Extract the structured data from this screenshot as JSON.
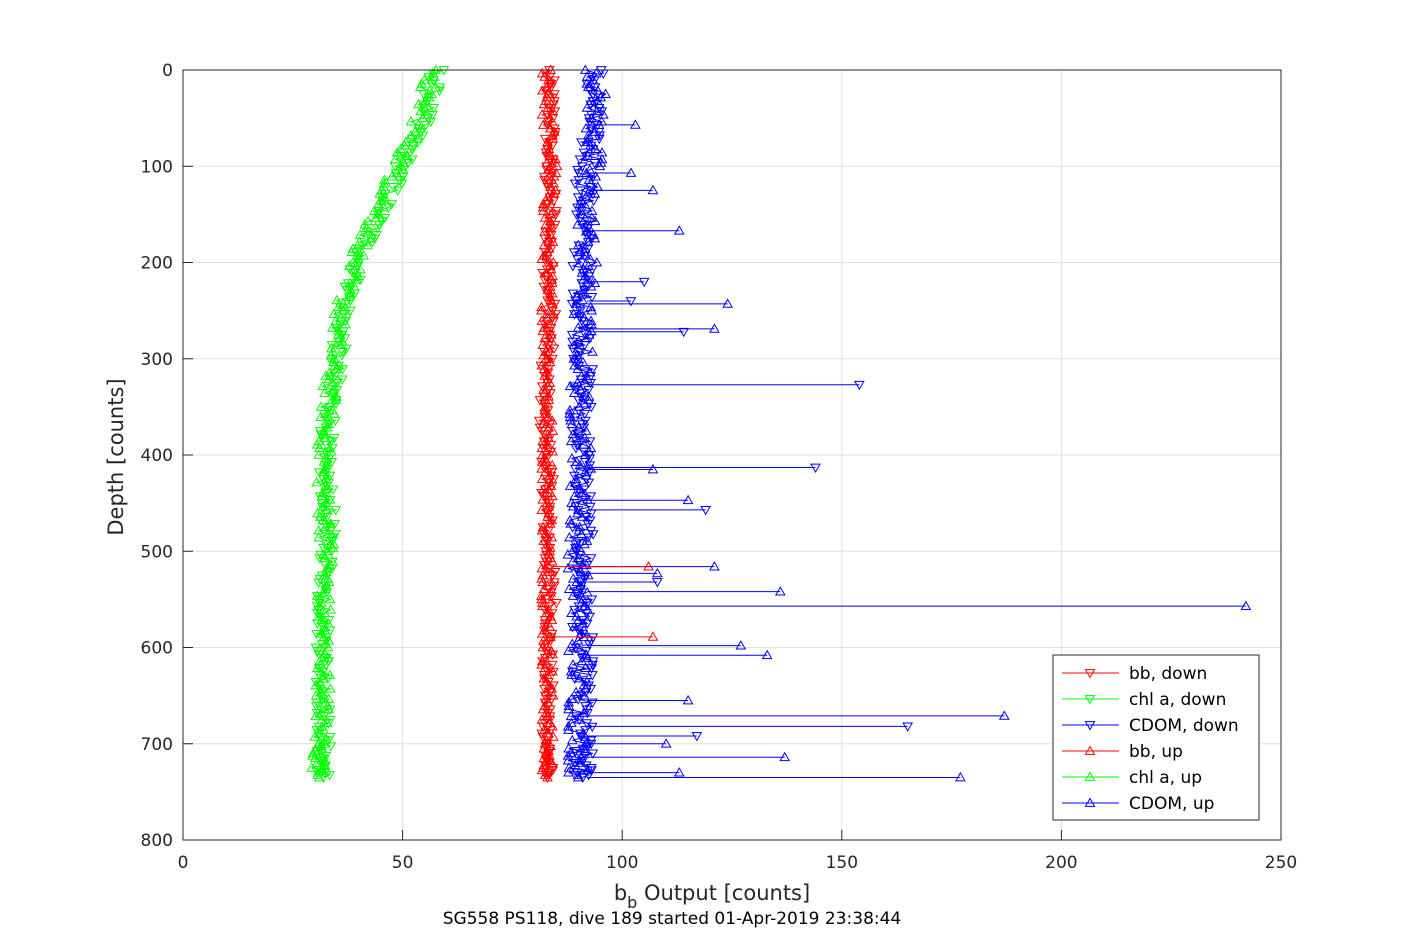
{
  "chart_data": {
    "type": "line",
    "title": "",
    "xlabel": "b",
    "xlabel_sub": "b",
    "xlabel_rest": " Output [counts]",
    "ylabel": "Depth [counts]",
    "caption": "SG558 PS118, dive 189 started 01-Apr-2019 23:38:44",
    "xlim": [
      0,
      250
    ],
    "ylim": [
      0,
      800
    ],
    "y_reversed": true,
    "grid": true,
    "legend_position": "bottom-right",
    "x_ticks": [
      0,
      50,
      100,
      150,
      200,
      250
    ],
    "y_ticks": [
      0,
      100,
      200,
      300,
      400,
      500,
      600,
      700,
      800
    ],
    "x_tick_labels": [
      "0",
      "50",
      "100",
      "150",
      "200",
      "250"
    ],
    "y_tick_labels": [
      "0",
      "100",
      "200",
      "300",
      "400",
      "500",
      "600",
      "700",
      "800"
    ],
    "series": [
      {
        "name": "bb, down",
        "color": "#ff0000",
        "marker": "triangle-down",
        "points": [
          [
            83,
            0
          ],
          [
            84,
            50
          ],
          [
            83,
            100
          ],
          [
            84,
            150
          ],
          [
            83,
            200
          ],
          [
            84,
            250
          ],
          [
            83,
            300
          ],
          [
            82,
            350
          ],
          [
            83,
            400
          ],
          [
            83,
            450
          ],
          [
            83,
            500
          ],
          [
            84,
            550
          ],
          [
            83,
            600
          ],
          [
            83,
            650
          ],
          [
            83,
            700
          ],
          [
            83,
            735
          ]
        ]
      },
      {
        "name": "chl a, down",
        "color": "#00ff00",
        "marker": "triangle-down",
        "points": [
          [
            58,
            0
          ],
          [
            55,
            50
          ],
          [
            50,
            100
          ],
          [
            45,
            150
          ],
          [
            40,
            200
          ],
          [
            37,
            250
          ],
          [
            35,
            300
          ],
          [
            34,
            350
          ],
          [
            32,
            400
          ],
          [
            33,
            450
          ],
          [
            33,
            500
          ],
          [
            32,
            550
          ],
          [
            32,
            600
          ],
          [
            32,
            650
          ],
          [
            32,
            700
          ],
          [
            32,
            735
          ]
        ]
      },
      {
        "name": "CDOM, down",
        "color": "#0000ff",
        "marker": "triangle-down",
        "points": [
          [
            94,
            0
          ],
          [
            93,
            50
          ],
          [
            92,
            100
          ],
          [
            91,
            150
          ],
          [
            91,
            200
          ],
          [
            91,
            250
          ],
          [
            91,
            300
          ],
          [
            91,
            350
          ],
          [
            91,
            400
          ],
          [
            91,
            450
          ],
          [
            91,
            500
          ],
          [
            91,
            550
          ],
          [
            91,
            600
          ],
          [
            91,
            650
          ],
          [
            91,
            700
          ],
          [
            91,
            735
          ]
        ]
      },
      {
        "name": "bb, up",
        "color": "#ff0000",
        "marker": "triangle-up",
        "points": [
          [
            83,
            0
          ],
          [
            83,
            50
          ],
          [
            84,
            100
          ],
          [
            83,
            150
          ],
          [
            83,
            200
          ],
          [
            83,
            250
          ],
          [
            83,
            300
          ],
          [
            83,
            350
          ],
          [
            83,
            400
          ],
          [
            83,
            450
          ],
          [
            83,
            500
          ],
          [
            83,
            550
          ],
          [
            83,
            600
          ],
          [
            83,
            650
          ],
          [
            83,
            700
          ],
          [
            83,
            735
          ]
        ]
      },
      {
        "name": "chl a, up",
        "color": "#00ff00",
        "marker": "triangle-up",
        "points": [
          [
            56,
            0
          ],
          [
            54,
            50
          ],
          [
            49,
            100
          ],
          [
            44,
            150
          ],
          [
            39,
            200
          ],
          [
            36,
            250
          ],
          [
            34,
            300
          ],
          [
            33,
            350
          ],
          [
            32,
            400
          ],
          [
            32,
            450
          ],
          [
            33,
            500
          ],
          [
            32,
            550
          ],
          [
            32,
            600
          ],
          [
            32,
            650
          ],
          [
            31,
            700
          ],
          [
            31,
            735
          ]
        ]
      },
      {
        "name": "CDOM, up",
        "color": "#0000ff",
        "marker": "triangle-up",
        "points": [
          [
            94,
            0
          ],
          [
            94,
            50
          ],
          [
            93,
            100
          ],
          [
            92,
            150
          ],
          [
            92,
            200
          ],
          [
            91,
            250
          ],
          [
            91,
            300
          ],
          [
            90,
            350
          ],
          [
            91,
            400
          ],
          [
            90,
            450
          ],
          [
            90,
            500
          ],
          [
            90,
            550
          ],
          [
            90,
            600
          ],
          [
            90,
            650
          ],
          [
            90,
            700
          ],
          [
            90,
            735
          ]
        ]
      }
    ],
    "spikes": [
      {
        "series": "CDOM, up",
        "points": [
          [
            103,
            57
          ],
          [
            102,
            107
          ],
          [
            107,
            125
          ],
          [
            113,
            167
          ],
          [
            124,
            243
          ],
          [
            121,
            269
          ],
          [
            107,
            415
          ],
          [
            115,
            447
          ],
          [
            108,
            523
          ],
          [
            121,
            516
          ],
          [
            136,
            542
          ],
          [
            242,
            557
          ],
          [
            127,
            598
          ],
          [
            133,
            608
          ],
          [
            115,
            655
          ],
          [
            187,
            671
          ],
          [
            110,
            700
          ],
          [
            137,
            714
          ],
          [
            113,
            730
          ],
          [
            177,
            735
          ]
        ]
      },
      {
        "series": "CDOM, down",
        "points": [
          [
            105,
            220
          ],
          [
            102,
            240
          ],
          [
            114,
            272
          ],
          [
            154,
            327
          ],
          [
            144,
            413
          ],
          [
            119,
            457
          ],
          [
            108,
            532
          ],
          [
            165,
            682
          ],
          [
            117,
            692
          ]
        ]
      },
      {
        "series": "bb, up",
        "points": [
          [
            106,
            516
          ],
          [
            107,
            589
          ]
        ]
      }
    ]
  }
}
